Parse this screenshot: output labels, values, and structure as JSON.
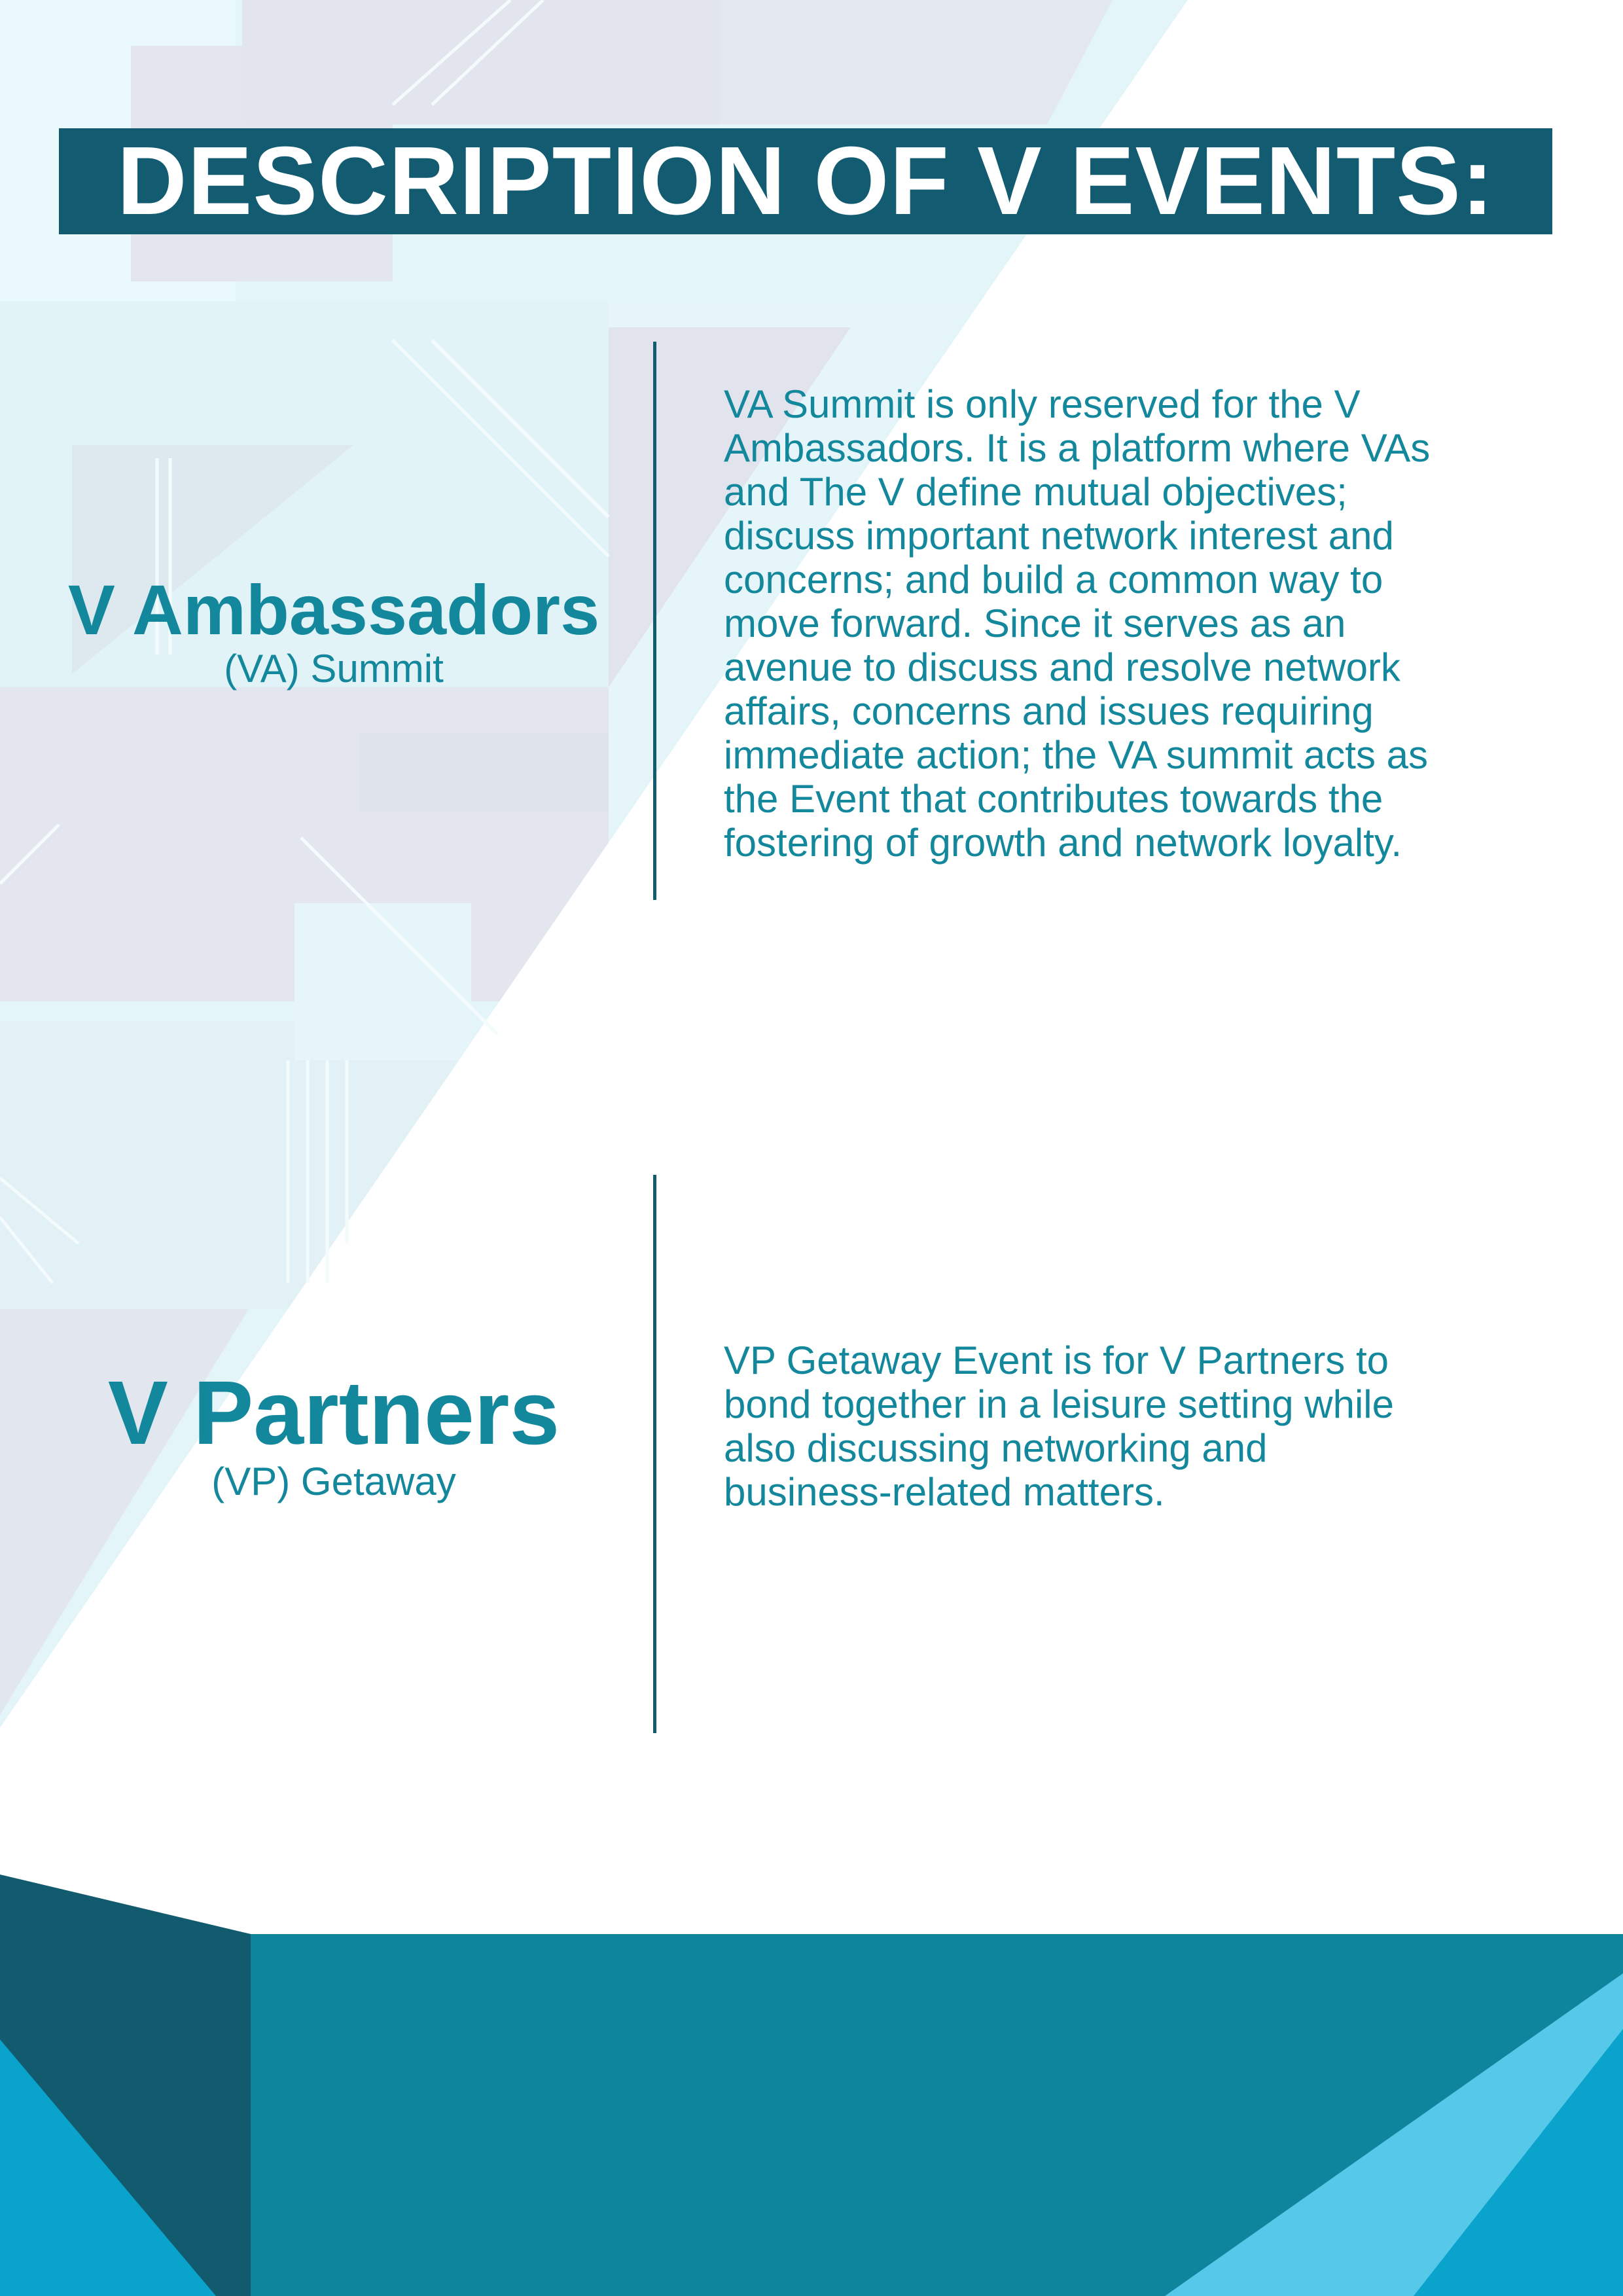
{
  "header": {
    "title": "DESCRIPTION OF V EVENTS:"
  },
  "events": [
    {
      "name": "V Ambassadors",
      "subtitle": "(VA) Summit",
      "lines": [
        "VA Summit is only reserved for the V",
        "Ambassadors. It is a platform where VAs",
        "and The V define mutual objectives;",
        "discuss important network interest and",
        "concerns; and build a common way to",
        "move forward.  Since it serves as an",
        "avenue to discuss and resolve network",
        "affairs, concerns and issues requiring",
        "immediate action; the VA summit acts as",
        "the Event that contributes towards the",
        "fostering of growth and network loyalty."
      ]
    },
    {
      "name": "V Partners",
      "subtitle": "(VP) Getaway",
      "lines": [
        "VP Getaway Event is for V Partners to",
        "bond together in a leisure setting while",
        "also discussing networking and",
        "business-related matters."
      ]
    }
  ],
  "colors": {
    "navy": "#135b70",
    "teal": "#13879b",
    "footer_teal": "#0f859d",
    "bright_blue": "#0aa3cc",
    "light_blue": "#56c8ea",
    "pattern_light": "#e6f6fa"
  }
}
